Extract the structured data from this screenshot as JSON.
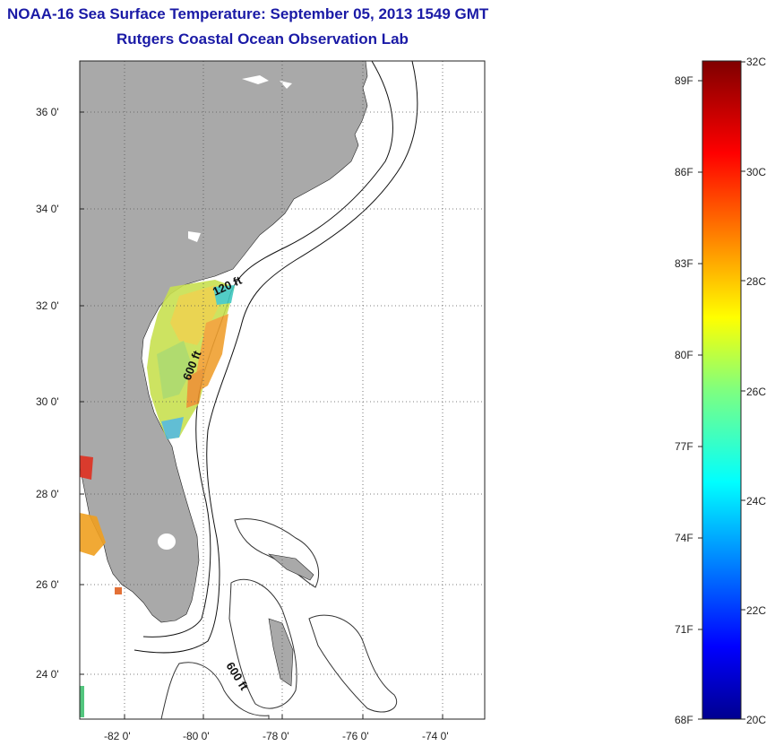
{
  "header": {
    "title": "NOAA-16 Sea Surface Temperature:  September 05, 2013 1549 GMT",
    "subtitle": "Rutgers Coastal Ocean Observation Lab"
  },
  "map": {
    "lat_labels": [
      "36 0'",
      "34 0'",
      "32 0'",
      "30 0'",
      "28 0'",
      "26 0'",
      "24 0'"
    ],
    "lon_labels": [
      "-82 0'",
      "-80 0'",
      "-78 0'",
      "-76 0'",
      "-74 0'"
    ],
    "isobath_labels": [
      "120 ft",
      "600 ft",
      "600 ft"
    ],
    "land_color": "#a9a9a9"
  },
  "colorbar": {
    "f_labels": [
      "89F",
      "86F",
      "83F",
      "80F",
      "77F",
      "74F",
      "71F",
      "68F"
    ],
    "c_labels": [
      "32C",
      "30C",
      "28C",
      "26C",
      "24C",
      "22C",
      "20C"
    ],
    "min_c": 20,
    "max_c": 32,
    "colormap": "jet"
  }
}
